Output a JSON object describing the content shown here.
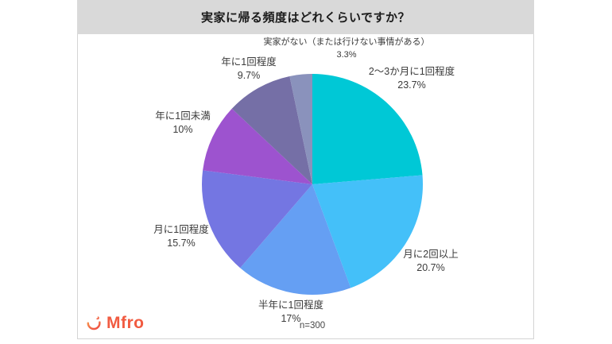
{
  "page": {
    "title": "実家に帰る頻度はどれくらいですか？",
    "sample_note": "n=300",
    "logo_text": "Mfro",
    "logo_color": "#f15b41",
    "header_bg": "#d9d9d9"
  },
  "chart_data": {
    "type": "pie",
    "title": "実家に帰る頻度はどれくらいですか？",
    "note": "n=300",
    "start_angle_deg": 0,
    "direction": "clockwise",
    "legend_position": "around-slices",
    "slices": [
      {
        "label": "2〜3か月に1回程度",
        "value": 23.7,
        "display": "23.7%",
        "color": "#00C8D6"
      },
      {
        "label": "月に2回以上",
        "value": 20.7,
        "display": "20.7%",
        "color": "#44C0F9"
      },
      {
        "label": "半年に1回程度",
        "value": 17,
        "display": "17%",
        "color": "#659FF3"
      },
      {
        "label": "月に1回程度",
        "value": 15.7,
        "display": "15.7%",
        "color": "#7476E2"
      },
      {
        "label": "年に1回未満",
        "value": 10,
        "display": "10%",
        "color": "#9D53CF"
      },
      {
        "label": "年に1回程度",
        "value": 9.7,
        "display": "9.7%",
        "color": "#756FA6"
      },
      {
        "label": "実家がない（または行けない事情がある）",
        "value": 3.3,
        "display": "3.3%",
        "color": "#8A92BC"
      }
    ]
  }
}
